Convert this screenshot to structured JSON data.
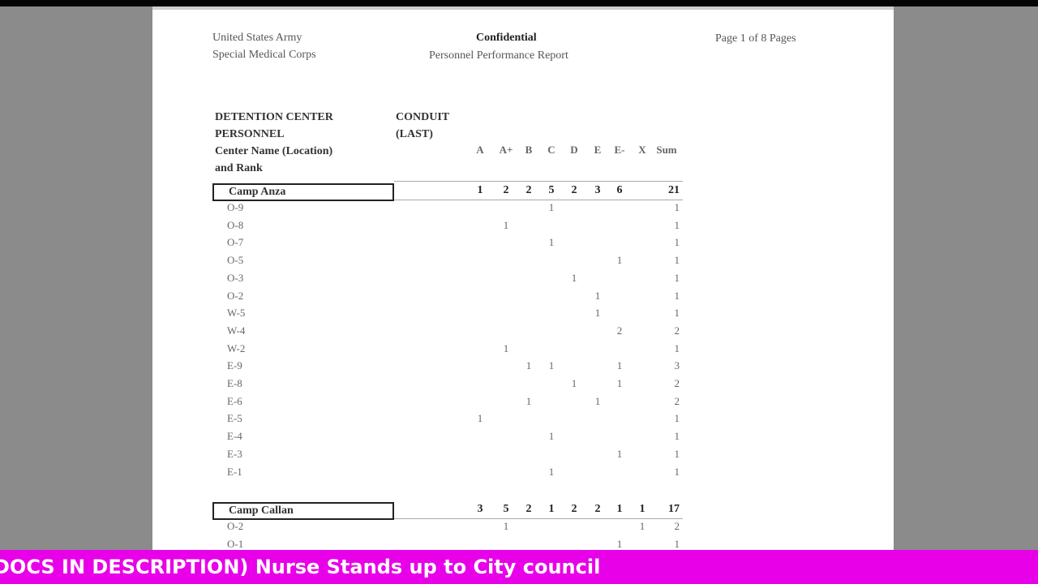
{
  "document": {
    "header_left": [
      "United States Army",
      "Special Medical Corps"
    ],
    "header_center_title": "Confidential",
    "header_center_subtitle": "Personnel Performance Report",
    "page_indicator": "Page 1 of 8 Pages"
  },
  "table": {
    "col1_header": [
      "DETENTION CENTER",
      "PERSONNEL",
      "Center Name (Location)",
      "and Rank"
    ],
    "col2_header": [
      "CONDUIT",
      "(LAST)"
    ],
    "grade_columns": [
      "A",
      "A+",
      "B",
      "C",
      "D",
      "E",
      "E-",
      "X",
      "Sum"
    ],
    "groups": [
      {
        "name": "Camp Anza",
        "totals": [
          "1",
          "2",
          "2",
          "5",
          "2",
          "3",
          "6",
          "",
          "21"
        ],
        "rows": [
          {
            "rank": "O-9",
            "values": [
              "",
              "",
              "",
              "1",
              "",
              "",
              "",
              "",
              "1"
            ]
          },
          {
            "rank": "O-8",
            "values": [
              "",
              "1",
              "",
              "",
              "",
              "",
              "",
              "",
              "1"
            ]
          },
          {
            "rank": "O-7",
            "values": [
              "",
              "",
              "",
              "1",
              "",
              "",
              "",
              "",
              "1"
            ]
          },
          {
            "rank": "O-5",
            "values": [
              "",
              "",
              "",
              "",
              "",
              "",
              "1",
              "",
              "1"
            ]
          },
          {
            "rank": "O-3",
            "values": [
              "",
              "",
              "",
              "",
              "1",
              "",
              "",
              "",
              "1"
            ]
          },
          {
            "rank": "O-2",
            "values": [
              "",
              "",
              "",
              "",
              "",
              "1",
              "",
              "",
              "1"
            ]
          },
          {
            "rank": "W-5",
            "values": [
              "",
              "",
              "",
              "",
              "",
              "1",
              "",
              "",
              "1"
            ]
          },
          {
            "rank": "W-4",
            "values": [
              "",
              "",
              "",
              "",
              "",
              "",
              "2",
              "",
              "2"
            ]
          },
          {
            "rank": "W-2",
            "values": [
              "",
              "1",
              "",
              "",
              "",
              "",
              "",
              "",
              "1"
            ]
          },
          {
            "rank": "E-9",
            "values": [
              "",
              "",
              "1",
              "1",
              "",
              "",
              "1",
              "",
              "3"
            ]
          },
          {
            "rank": "E-8",
            "values": [
              "",
              "",
              "",
              "",
              "1",
              "",
              "1",
              "",
              "2"
            ]
          },
          {
            "rank": "E-6",
            "values": [
              "",
              "",
              "1",
              "",
              "",
              "1",
              "",
              "",
              "2"
            ]
          },
          {
            "rank": "E-5",
            "values": [
              "1",
              "",
              "",
              "",
              "",
              "",
              "",
              "",
              "1"
            ]
          },
          {
            "rank": "E-4",
            "values": [
              "",
              "",
              "",
              "1",
              "",
              "",
              "",
              "",
              "1"
            ]
          },
          {
            "rank": "E-3",
            "values": [
              "",
              "",
              "",
              "",
              "",
              "",
              "1",
              "",
              "1"
            ]
          },
          {
            "rank": "E-1",
            "values": [
              "",
              "",
              "",
              "1",
              "",
              "",
              "",
              "",
              "1"
            ]
          }
        ]
      },
      {
        "name": "Camp Callan",
        "totals": [
          "3",
          "5",
          "2",
          "1",
          "2",
          "2",
          "1",
          "1",
          "17"
        ],
        "rows": [
          {
            "rank": "O-2",
            "values": [
              "",
              "1",
              "",
              "",
              "",
              "",
              "",
              "1",
              "2"
            ]
          },
          {
            "rank": "O-1",
            "values": [
              "",
              "",
              "",
              "",
              "",
              "",
              "1",
              "",
              "1"
            ]
          }
        ]
      }
    ]
  },
  "banner": {
    "text": "DOCS IN DESCRIPTION) Nurse Stands up to City council",
    "color": "#e800e8"
  }
}
